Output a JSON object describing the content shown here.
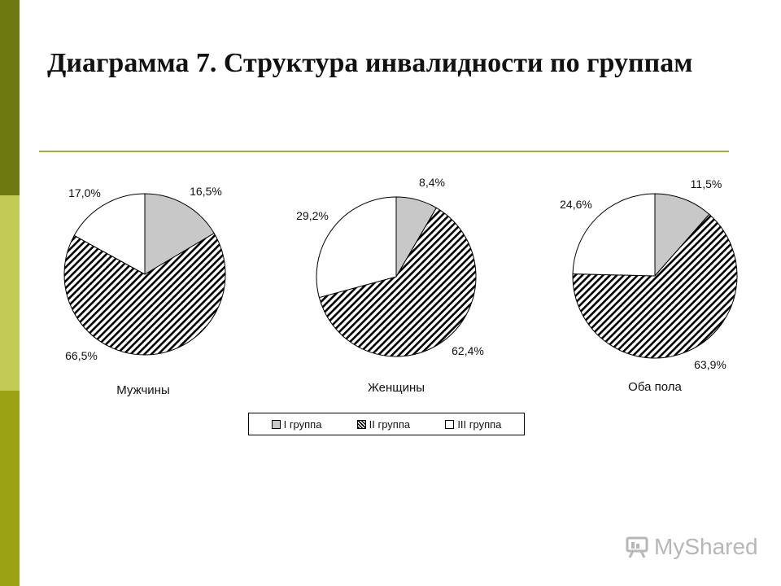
{
  "title": "Диаграмма 7. Структура инвалидности по группам",
  "brand": {
    "name": "MyShared",
    "icon": "presentation-board-icon"
  },
  "colors": {
    "group1": "#c8c8c8",
    "group3": "#ffffff",
    "hatch": "#000000"
  },
  "chart_data": [
    {
      "type": "pie",
      "title": "Мужчины",
      "categories": [
        "I группа",
        "II группа",
        "III группа"
      ],
      "values": [
        16.5,
        66.5,
        17.0
      ],
      "labels": [
        "16,5%",
        "66,5%",
        "17,0%"
      ]
    },
    {
      "type": "pie",
      "title": "Женщины",
      "categories": [
        "I группа",
        "II группа",
        "III группа"
      ],
      "values": [
        8.4,
        62.4,
        29.2
      ],
      "labels": [
        "8,4%",
        "62,4%",
        "29,2%"
      ]
    },
    {
      "type": "pie",
      "title": "Оба пола",
      "categories": [
        "I группа",
        "II группа",
        "III группа"
      ],
      "values": [
        11.5,
        63.9,
        24.6
      ],
      "labels": [
        "11,5%",
        "63,9%",
        "24,6%"
      ]
    }
  ],
  "legend": [
    {
      "label": "I группа",
      "fill": "gray"
    },
    {
      "label": "II группа",
      "fill": "hatch"
    },
    {
      "label": "III группа",
      "fill": "white"
    }
  ]
}
